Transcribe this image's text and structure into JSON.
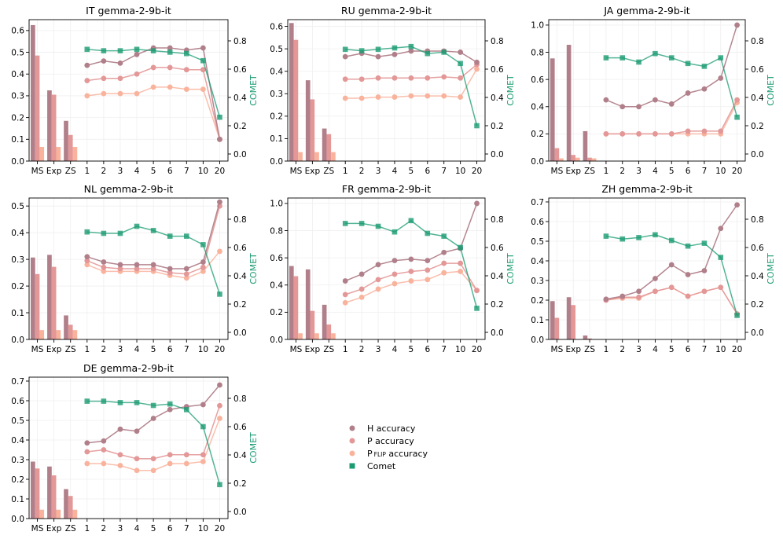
{
  "legend": {
    "items": [
      {
        "label": "H accuracy",
        "marker": "circle",
        "color": "#b07f8a"
      },
      {
        "label": "P accuracy",
        "marker": "circle",
        "color": "#e39797"
      },
      {
        "label": "P",
        "sub": "FLIP",
        "suffix": " accuracy",
        "marker": "circle",
        "color": "#f9b39d"
      },
      {
        "label": "Comet",
        "marker": "square",
        "color": "#1a9b72"
      }
    ]
  },
  "colors": {
    "h": "#b07f8a",
    "p": "#e39797",
    "pflip": "#f9b39d",
    "comet": "#1a9b72"
  },
  "chart_data": [
    {
      "type": "bar+line",
      "title": "IT gemma-2-9b-it",
      "bar_categories": [
        "MS",
        "Exp",
        "ZS"
      ],
      "line_x": [
        "1",
        "2",
        "3",
        "4",
        "5",
        "6",
        "7",
        "10",
        "20"
      ],
      "ylim": [
        0,
        0.65
      ],
      "yticks": [
        0,
        0.1,
        0.2,
        0.3,
        0.4,
        0.5,
        0.6
      ],
      "y2label": "COMET",
      "y2lim": [
        -0.05,
        0.95
      ],
      "y2ticks": [
        0.0,
        0.2,
        0.4,
        0.6,
        0.8
      ],
      "bars": {
        "h": [
          0.625,
          0.325,
          0.185
        ],
        "p": [
          0.485,
          0.305,
          0.12
        ],
        "pflip": [
          0.065,
          0.065,
          0.065
        ]
      },
      "lines": {
        "h": [
          0.44,
          0.46,
          0.45,
          0.49,
          0.52,
          0.52,
          0.51,
          0.52,
          0.1
        ],
        "p": [
          0.37,
          0.38,
          0.38,
          0.4,
          0.43,
          0.43,
          0.42,
          0.42,
          0.1
        ],
        "pflip": [
          0.3,
          0.31,
          0.31,
          0.31,
          0.34,
          0.34,
          0.33,
          0.33,
          0.1
        ],
        "comet": [
          0.74,
          0.73,
          0.73,
          0.74,
          0.73,
          0.72,
          0.71,
          0.66,
          0.26
        ]
      }
    },
    {
      "type": "bar+line",
      "title": "RU gemma-2-9b-it",
      "bar_categories": [
        "MS",
        "Exp",
        "ZS"
      ],
      "line_x": [
        "1",
        "2",
        "3",
        "4",
        "5",
        "6",
        "7",
        "10",
        "20"
      ],
      "ylim": [
        0,
        0.63
      ],
      "yticks": [
        0,
        0.1,
        0.2,
        0.3,
        0.4,
        0.5,
        0.6
      ],
      "y2label": "COMET",
      "y2lim": [
        -0.05,
        0.95
      ],
      "y2ticks": [
        0.0,
        0.2,
        0.4,
        0.6,
        0.8
      ],
      "bars": {
        "h": [
          0.615,
          0.36,
          0.145
        ],
        "p": [
          0.54,
          0.275,
          0.12
        ],
        "pflip": [
          0.04,
          0.04,
          0.04
        ]
      },
      "lines": {
        "h": [
          0.465,
          0.48,
          0.465,
          0.475,
          0.49,
          0.49,
          0.49,
          0.485,
          0.44
        ],
        "p": [
          0.365,
          0.365,
          0.37,
          0.37,
          0.37,
          0.37,
          0.375,
          0.37,
          0.43
        ],
        "pflip": [
          0.28,
          0.28,
          0.285,
          0.285,
          0.29,
          0.29,
          0.29,
          0.285,
          0.41
        ],
        "comet": [
          0.74,
          0.73,
          0.74,
          0.75,
          0.76,
          0.71,
          0.72,
          0.64,
          0.2
        ]
      }
    },
    {
      "type": "bar+line",
      "title": "JA gemma-2-9b-it",
      "bar_categories": [
        "MS",
        "Exp",
        "ZS"
      ],
      "line_x": [
        "1",
        "2",
        "3",
        "4",
        "5",
        "6",
        "7",
        "10",
        "20"
      ],
      "ylim": [
        0,
        1.04
      ],
      "yticks": [
        0,
        0.2,
        0.4,
        0.6,
        0.8,
        1.0
      ],
      "y2label": "COMET",
      "y2lim": [
        -0.05,
        0.95
      ],
      "y2ticks": [
        0.0,
        0.2,
        0.4,
        0.6,
        0.8
      ],
      "bars": {
        "h": [
          0.755,
          0.855,
          0.22
        ],
        "p": [
          0.095,
          0.045,
          0.025
        ],
        "pflip": [
          0.02,
          0.025,
          0.02
        ]
      },
      "lines": {
        "h": [
          0.45,
          0.4,
          0.4,
          0.45,
          0.42,
          0.5,
          0.53,
          0.61,
          1.0
        ],
        "p": [
          0.2,
          0.2,
          0.2,
          0.2,
          0.2,
          0.22,
          0.22,
          0.22,
          0.45
        ],
        "pflip": [
          0.2,
          0.2,
          0.2,
          0.2,
          0.2,
          0.2,
          0.2,
          0.2,
          0.43
        ],
        "comet": [
          0.68,
          0.68,
          0.65,
          0.71,
          0.68,
          0.64,
          0.62,
          0.68,
          0.26
        ]
      }
    },
    {
      "type": "bar+line",
      "title": "NL gemma-2-9b-it",
      "bar_categories": [
        "MS",
        "Exp",
        "ZS"
      ],
      "line_x": [
        "1",
        "2",
        "3",
        "4",
        "5",
        "6",
        "7",
        "10",
        "20"
      ],
      "ylim": [
        0,
        0.53
      ],
      "yticks": [
        0,
        0.1,
        0.2,
        0.3,
        0.4,
        0.5
      ],
      "y2label": "COMET",
      "y2lim": [
        -0.05,
        0.95
      ],
      "y2ticks": [
        0.0,
        0.2,
        0.4,
        0.6,
        0.8
      ],
      "bars": {
        "h": [
          0.307,
          0.317,
          0.09
        ],
        "p": [
          0.245,
          0.272,
          0.055
        ],
        "pflip": [
          0.035,
          0.035,
          0.035
        ]
      },
      "lines": {
        "h": [
          0.31,
          0.29,
          0.28,
          0.28,
          0.28,
          0.265,
          0.265,
          0.29,
          0.515
        ],
        "p": [
          0.295,
          0.27,
          0.265,
          0.265,
          0.265,
          0.25,
          0.245,
          0.27,
          0.5
        ],
        "pflip": [
          0.28,
          0.255,
          0.255,
          0.255,
          0.255,
          0.24,
          0.23,
          0.255,
          0.33
        ],
        "comet": [
          0.71,
          0.7,
          0.7,
          0.75,
          0.72,
          0.68,
          0.68,
          0.62,
          0.27
        ]
      }
    },
    {
      "type": "bar+line",
      "title": "FR gemma-2-9b-it",
      "bar_categories": [
        "MS",
        "Exp",
        "ZS"
      ],
      "line_x": [
        "1",
        "2",
        "3",
        "4",
        "5",
        "6",
        "7",
        "10",
        "20"
      ],
      "ylim": [
        0,
        1.04
      ],
      "yticks": [
        0,
        0.2,
        0.4,
        0.6,
        0.8,
        1.0
      ],
      "y2label": "COMET",
      "y2lim": [
        -0.05,
        0.95
      ],
      "y2ticks": [
        0.0,
        0.2,
        0.4,
        0.6,
        0.8
      ],
      "bars": {
        "h": [
          0.54,
          0.515,
          0.255
        ],
        "p": [
          0.465,
          0.21,
          0.11
        ],
        "pflip": [
          0.045,
          0.045,
          0.045
        ]
      },
      "lines": {
        "h": [
          0.43,
          0.48,
          0.55,
          0.58,
          0.59,
          0.58,
          0.64,
          0.67,
          1.0
        ],
        "p": [
          0.33,
          0.37,
          0.44,
          0.48,
          0.5,
          0.51,
          0.56,
          0.56,
          0.36
        ],
        "pflip": [
          0.27,
          0.31,
          0.37,
          0.41,
          0.43,
          0.44,
          0.49,
          0.5,
          0.36
        ],
        "comet": [
          0.77,
          0.77,
          0.75,
          0.71,
          0.79,
          0.7,
          0.68,
          0.6,
          0.17
        ]
      }
    },
    {
      "type": "bar+line",
      "title": "ZH gemma-2-9b-it",
      "bar_categories": [
        "MS",
        "Exp",
        "ZS"
      ],
      "line_x": [
        "1",
        "2",
        "3",
        "4",
        "5",
        "6",
        "7",
        "10",
        "20"
      ],
      "ylim": [
        0,
        0.72
      ],
      "yticks": [
        0,
        0.1,
        0.2,
        0.3,
        0.4,
        0.5,
        0.6,
        0.7
      ],
      "y2label": "COMET",
      "y2lim": [
        -0.05,
        0.95
      ],
      "y2ticks": [
        0.0,
        0.2,
        0.4,
        0.6,
        0.8
      ],
      "bars": {
        "h": [
          0.195,
          0.215,
          0.02
        ],
        "p": [
          0.11,
          0.175,
          0.005
        ],
        "pflip": [
          0.0,
          0.0,
          0.0
        ]
      },
      "lines": {
        "h": [
          0.205,
          0.22,
          0.245,
          0.31,
          0.38,
          0.33,
          0.35,
          0.565,
          0.685
        ],
        "p": [
          0.2,
          0.215,
          0.215,
          0.245,
          0.265,
          0.22,
          0.245,
          0.265,
          0.13
        ],
        "pflip": [
          0.2,
          0.21,
          0.21,
          0.245,
          0.265,
          0.22,
          0.245,
          0.265,
          0.13
        ],
        "comet": [
          0.68,
          0.66,
          0.67,
          0.69,
          0.65,
          0.61,
          0.63,
          0.53,
          0.12
        ]
      }
    },
    {
      "type": "bar+line",
      "title": "DE gemma-2-9b-it",
      "bar_categories": [
        "MS",
        "Exp",
        "ZS"
      ],
      "line_x": [
        "1",
        "2",
        "3",
        "4",
        "5",
        "6",
        "7",
        "10",
        "20"
      ],
      "ylim": [
        0,
        0.72
      ],
      "yticks": [
        0,
        0.1,
        0.2,
        0.3,
        0.4,
        0.5,
        0.6,
        0.7
      ],
      "y2label": "COMET",
      "y2lim": [
        -0.05,
        0.95
      ],
      "y2ticks": [
        0.0,
        0.2,
        0.4,
        0.6,
        0.8
      ],
      "bars": {
        "h": [
          0.29,
          0.265,
          0.15
        ],
        "p": [
          0.255,
          0.22,
          0.115
        ],
        "pflip": [
          0.045,
          0.045,
          0.045
        ]
      },
      "lines": {
        "h": [
          0.385,
          0.395,
          0.455,
          0.445,
          0.51,
          0.555,
          0.57,
          0.58,
          0.68
        ],
        "p": [
          0.34,
          0.35,
          0.325,
          0.305,
          0.305,
          0.325,
          0.325,
          0.325,
          0.575
        ],
        "pflip": [
          0.28,
          0.28,
          0.27,
          0.245,
          0.245,
          0.28,
          0.28,
          0.29,
          0.51
        ],
        "comet": [
          0.78,
          0.78,
          0.77,
          0.77,
          0.75,
          0.76,
          0.72,
          0.6,
          0.19
        ]
      }
    }
  ]
}
